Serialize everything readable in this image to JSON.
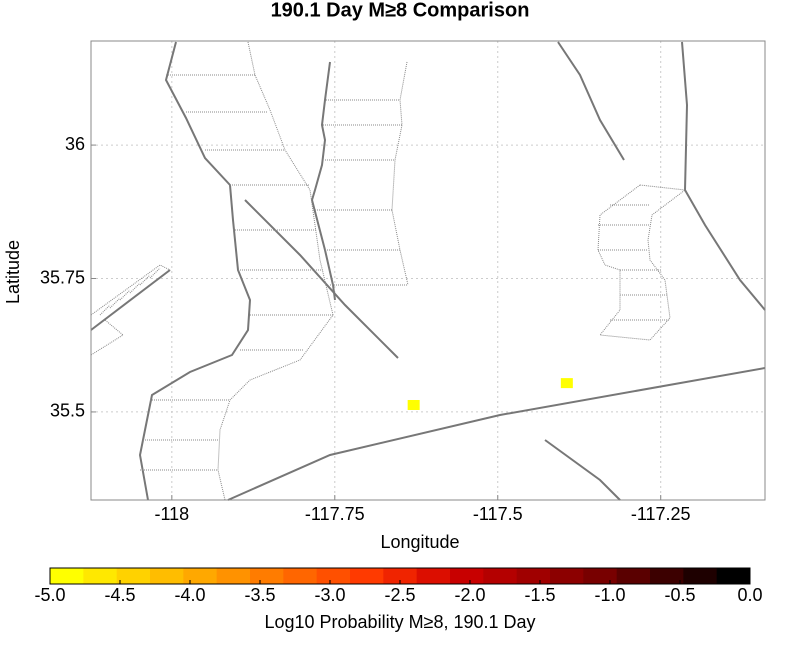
{
  "chart_data": {
    "type": "scatter",
    "title": "190.1 Day M≥8 Comparison",
    "x_label": "Longitude",
    "y_label": "Latitude",
    "xlim": [
      -118.124,
      -117.09
    ],
    "ylim": [
      35.335,
      36.195
    ],
    "xticks": [
      -118,
      -117.75,
      -117.5,
      -117.25
    ],
    "yticks": [
      36,
      35.75,
      35.5
    ],
    "grid": true,
    "series": [
      {
        "color": "#ffff00",
        "x": [
          -117.629,
          -117.394
        ],
        "y": [
          35.513,
          35.554
        ]
      }
    ],
    "colorbar": {
      "label": "Log10 Probability M≥8, 190.1 Day",
      "lim": [
        -5,
        0
      ],
      "ticks": [
        {
          "value": -5,
          "label": "-5.0"
        },
        {
          "value": -4.5,
          "label": "-4.5"
        },
        {
          "value": -4,
          "label": "-4.0"
        },
        {
          "value": -3.5,
          "label": "-3.5"
        },
        {
          "value": -3,
          "label": "-3.0"
        },
        {
          "value": -2.5,
          "label": "-2.5"
        },
        {
          "value": -2,
          "label": "-2.0"
        },
        {
          "value": -1.5,
          "label": "-1.5"
        },
        {
          "value": -1,
          "label": "-1.0"
        },
        {
          "value": -0.5,
          "label": "-0.5"
        },
        {
          "value": 0,
          "label": "0.0"
        }
      ],
      "colors": [
        "#ffff00",
        "#ffe800",
        "#ffd200",
        "#ffbd00",
        "#ffa800",
        "#ff9200",
        "#ff7c00",
        "#ff6600",
        "#ff5000",
        "#ff3a00",
        "#f02400",
        "#dc0e00",
        "#c80000",
        "#b40000",
        "#a00000",
        "#8c0000",
        "#780000",
        "#5a0000",
        "#3c0000",
        "#1e0000",
        "#000000"
      ]
    }
  }
}
